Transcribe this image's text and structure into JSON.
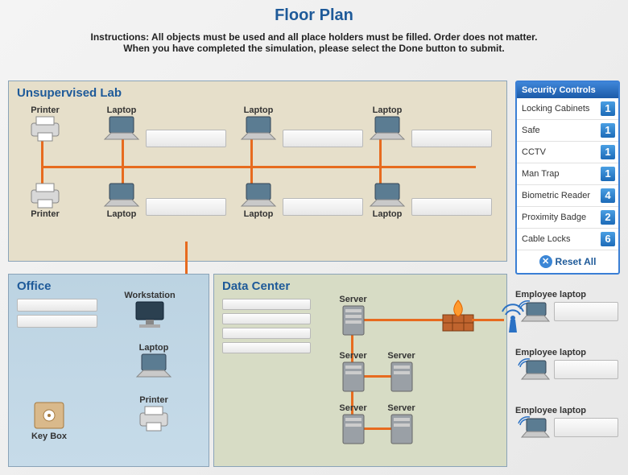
{
  "title": "Floor Plan",
  "instructions_line1": "Instructions: All objects must be used and all place holders must be filled. Order does not matter.",
  "instructions_line2": "When you have completed the simulation, please select the Done button to submit.",
  "panels": {
    "lab": {
      "title": "Unsupervised Lab"
    },
    "office": {
      "title": "Office"
    },
    "dc": {
      "title": "Data Center"
    }
  },
  "security": {
    "title": "Security Controls",
    "items": [
      {
        "label": "Locking Cabinets",
        "count": 1
      },
      {
        "label": "Safe",
        "count": 1
      },
      {
        "label": "CCTV",
        "count": 1
      },
      {
        "label": "Man Trap",
        "count": 1
      },
      {
        "label": "Biometric Reader",
        "count": 4
      },
      {
        "label": "Proximity Badge",
        "count": 2
      },
      {
        "label": "Cable Locks",
        "count": 6
      }
    ],
    "reset_label": "Reset All"
  },
  "devices": {
    "lab": {
      "top_row": [
        "Printer",
        "Laptop",
        "Laptop",
        "Laptop"
      ],
      "bottom_row": [
        "Printer",
        "Laptop",
        "Laptop",
        "Laptop"
      ]
    },
    "office": {
      "workstation": "Workstation",
      "laptop": "Laptop",
      "printer": "Printer",
      "keybox": "Key Box"
    },
    "dc": {
      "servers": [
        "Server",
        "Server",
        "Server",
        "Server",
        "Server"
      ]
    },
    "employee": {
      "label": "Employee laptop",
      "count": 3
    }
  },
  "colors": {
    "title": "#1e5a99",
    "wire": "#e76b1f",
    "lab_bg": "#e6dfca",
    "office_bg": "#c2d8e6",
    "dc_bg": "#d7dcc5",
    "sec_grad_top": "#3f86d8",
    "sec_grad_bot": "#1b5aa8"
  }
}
